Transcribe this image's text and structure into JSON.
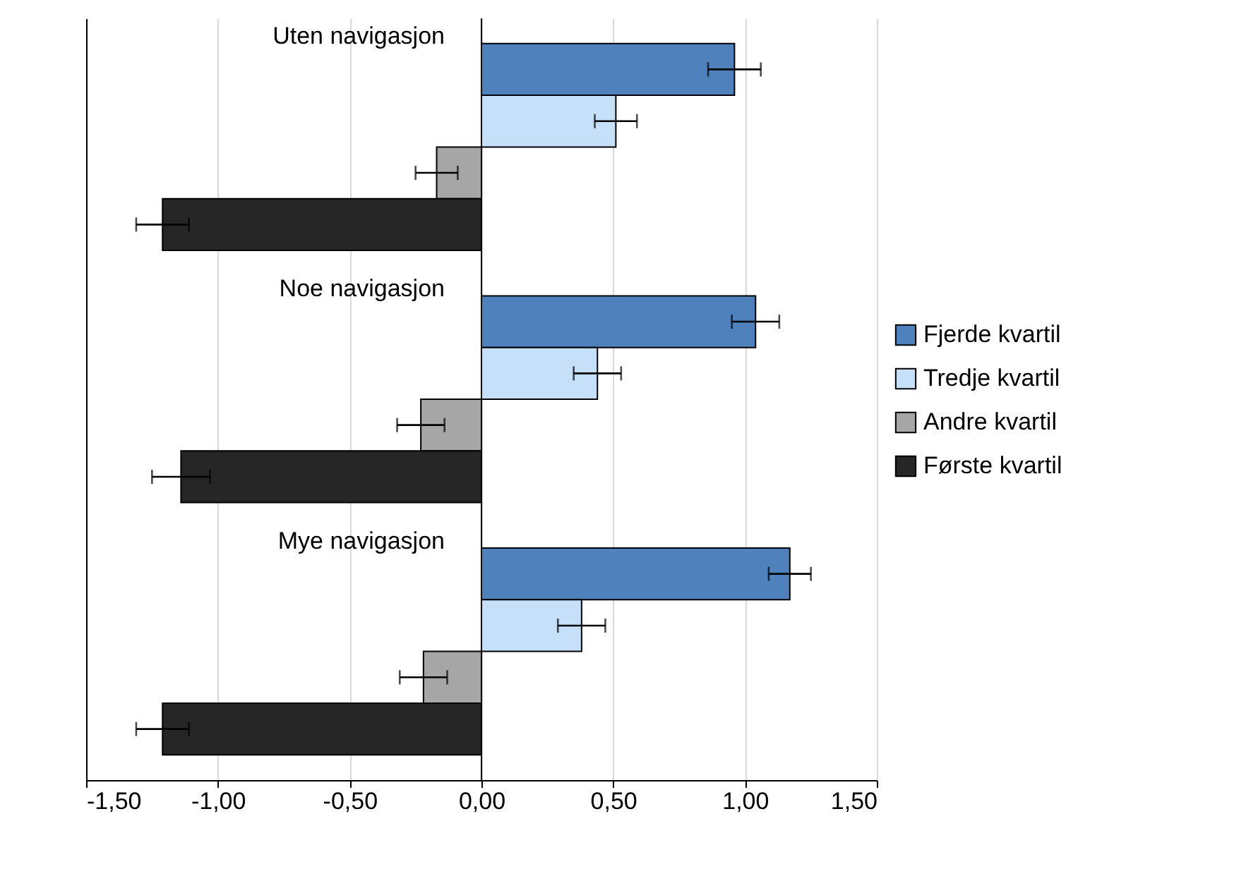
{
  "chart_data": {
    "type": "bar",
    "orientation": "horizontal",
    "categories": [
      "Uten navigasjon",
      "Noe navigasjon",
      "Mye navigasjon"
    ],
    "series": [
      {
        "name": "Fjerde kvartil",
        "color": "#4f81bd",
        "values": [
          0.96,
          1.04,
          1.17
        ],
        "errors": [
          0.1,
          0.09,
          0.08
        ]
      },
      {
        "name": "Tredje kvartil",
        "color": "#c6e0fa",
        "values": [
          0.51,
          0.44,
          0.38
        ],
        "errors": [
          0.08,
          0.09,
          0.09
        ]
      },
      {
        "name": "Andre kvartil",
        "color": "#a6a6a6",
        "values": [
          -0.17,
          -0.23,
          -0.22
        ],
        "errors": [
          0.08,
          0.09,
          0.09
        ]
      },
      {
        "name": "Første kvartil",
        "color": "#262626",
        "values": [
          -1.21,
          -1.14,
          -1.21
        ],
        "errors": [
          0.1,
          0.11,
          0.1
        ]
      }
    ],
    "xlim": [
      -1.5,
      1.5
    ],
    "xticks": [
      {
        "value": -1.5,
        "label": "-1,50"
      },
      {
        "value": -1.0,
        "label": "-1,00"
      },
      {
        "value": -0.5,
        "label": "-0,50"
      },
      {
        "value": 0,
        "label": "0,00"
      },
      {
        "value": 0.5,
        "label": "0,50"
      },
      {
        "value": 1.0,
        "label": "1,00"
      },
      {
        "value": 1.5,
        "label": "1,50"
      }
    ],
    "grid": "x",
    "legend": "right",
    "tick_labels": "x"
  }
}
